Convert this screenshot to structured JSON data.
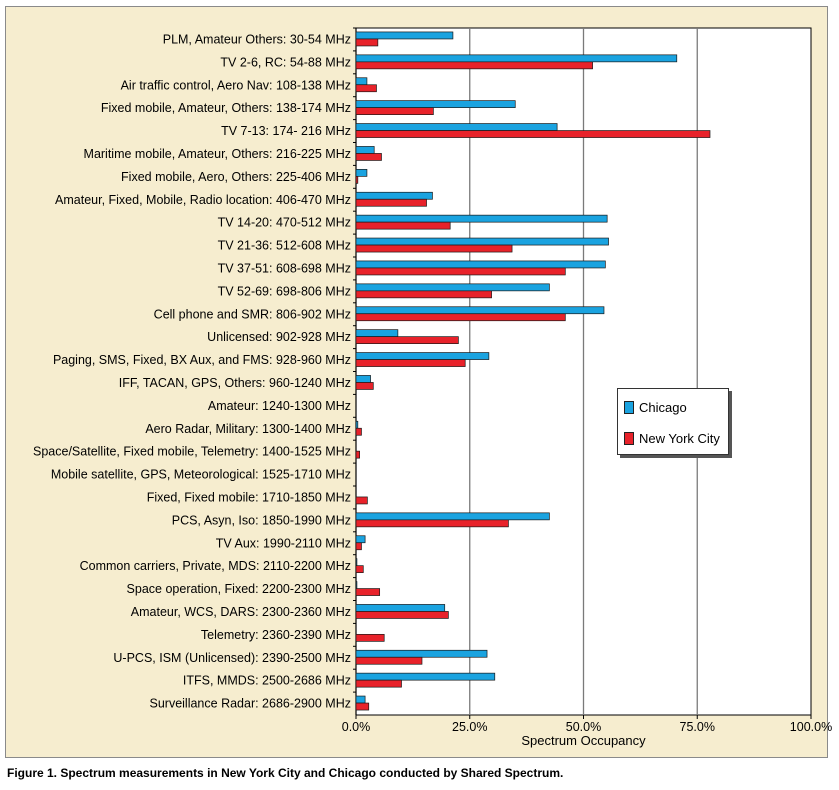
{
  "caption": "Figure 1. Spectrum measurements in New York City and Chicago conducted by Shared Spectrum.",
  "chart_data": {
    "type": "bar",
    "orientation": "horizontal",
    "xlabel": "Spectrum Occupancy",
    "xlim": [
      0,
      100
    ],
    "xticks": [
      0,
      25,
      50,
      75,
      100
    ],
    "xtick_labels": [
      "0.0%",
      "25.0%",
      "50.0%",
      "75.0%",
      "100.0%"
    ],
    "legend_position": "center-right",
    "categories": [
      "PLM, Amateur Others: 30-54 MHz",
      "TV 2-6, RC: 54-88 MHz",
      "Air traffic control, Aero Nav: 108-138 MHz",
      "Fixed mobile, Amateur, Others: 138-174 MHz",
      "TV 7-13: 174- 216 MHz",
      "Maritime mobile, Amateur, Others: 216-225 MHz",
      "Fixed mobile, Aero, Others: 225-406 MHz",
      "Amateur, Fixed, Mobile, Radio location: 406-470 MHz",
      "TV 14-20: 470-512 MHz",
      "TV 21-36: 512-608 MHz",
      "TV 37-51: 608-698 MHz",
      "TV 52-69: 698-806 MHz",
      "Cell phone and SMR: 806-902 MHz",
      "Unlicensed: 902-928 MHz",
      "Paging, SMS, Fixed, BX Aux, and FMS: 928-960 MHz",
      "IFF, TACAN, GPS, Others: 960-1240 MHz",
      "Amateur: 1240-1300 MHz",
      "Aero Radar, Military: 1300-1400 MHz",
      "Space/Satellite, Fixed mobile, Telemetry: 1400-1525 MHz",
      "Mobile satellite, GPS, Meteorological: 1525-1710 MHz",
      "Fixed, Fixed mobile: 1710-1850 MHz",
      "PCS, Asyn, Iso: 1850-1990 MHz",
      "TV Aux: 1990-2110 MHz",
      "Common carriers, Private, MDS: 2110-2200 MHz",
      "Space operation, Fixed: 2200-2300 MHz",
      "Amateur, WCS, DARS: 2300-2360 MHz",
      "Telemetry: 2360-2390 MHz",
      "U-PCS, ISM (Unlicensed): 2390-2500 MHz",
      "ITFS, MMDS: 2500-2686 MHz",
      "Surveillance Radar: 2686-2900 MHz"
    ],
    "series": [
      {
        "name": "Chicago",
        "color": "#1aa3e0",
        "values": [
          21.3,
          70.5,
          2.4,
          35.0,
          44.2,
          4.0,
          2.4,
          16.8,
          55.2,
          55.5,
          54.8,
          42.5,
          54.5,
          9.2,
          29.2,
          3.2,
          0,
          0.4,
          0,
          0,
          0,
          42.5,
          2.0,
          0.2,
          0.2,
          19.5,
          0,
          28.8,
          30.5,
          2.0
        ]
      },
      {
        "name": "New York City",
        "color": "#e8222a",
        "values": [
          4.8,
          52.0,
          4.5,
          17.0,
          77.8,
          5.6,
          0.4,
          15.5,
          20.7,
          34.3,
          46.0,
          29.8,
          46.0,
          22.5,
          24.0,
          3.8,
          0,
          1.2,
          0.8,
          0,
          2.5,
          33.5,
          1.2,
          1.6,
          5.2,
          20.3,
          6.2,
          14.5,
          10.0,
          2.8
        ]
      }
    ]
  }
}
